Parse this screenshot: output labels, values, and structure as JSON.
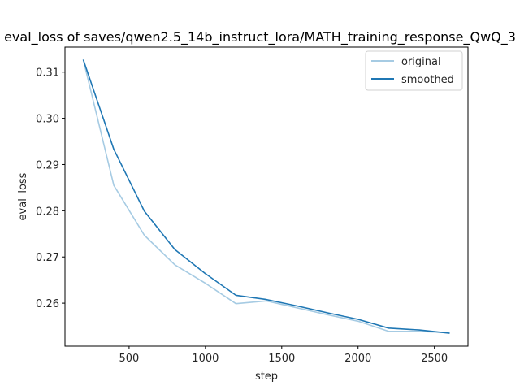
{
  "chart_data": {
    "type": "line",
    "title": "eval_loss of saves/qwen2.5_14b_instruct_lora/MATH_training_response_QwQ_3",
    "xlabel": "step",
    "ylabel": "eval_loss",
    "x": [
      200,
      400,
      600,
      800,
      1000,
      1200,
      1400,
      1600,
      1800,
      2000,
      2200,
      2400,
      2600
    ],
    "series": [
      {
        "name": "original",
        "color": "#a6cbe3",
        "values": [
          0.3127,
          0.2855,
          0.2747,
          0.2683,
          0.2643,
          0.2599,
          0.2605,
          0.259,
          0.2575,
          0.2561,
          0.2539,
          0.2539,
          0.2536
        ]
      },
      {
        "name": "smoothed",
        "color": "#1f77b4",
        "values": [
          0.3127,
          0.2933,
          0.2799,
          0.2716,
          0.2664,
          0.2617,
          0.2608,
          0.2594,
          0.2579,
          0.2565,
          0.2546,
          0.2542,
          0.2535
        ]
      }
    ],
    "xticks": [
      500,
      1000,
      1500,
      2000,
      2500
    ],
    "xtick_labels": [
      "500",
      "1000",
      "1500",
      "2000",
      "2500"
    ],
    "yticks": [
      0.31,
      0.3,
      0.29,
      0.28,
      0.27,
      0.26
    ],
    "ytick_labels": [
      "0.31",
      "0.30",
      "0.29",
      "0.28",
      "0.27",
      "0.26"
    ],
    "xlim": [
      80,
      2720
    ],
    "ylim": [
      0.2507,
      0.3154
    ],
    "grid": false,
    "legend_position": "upper right"
  }
}
